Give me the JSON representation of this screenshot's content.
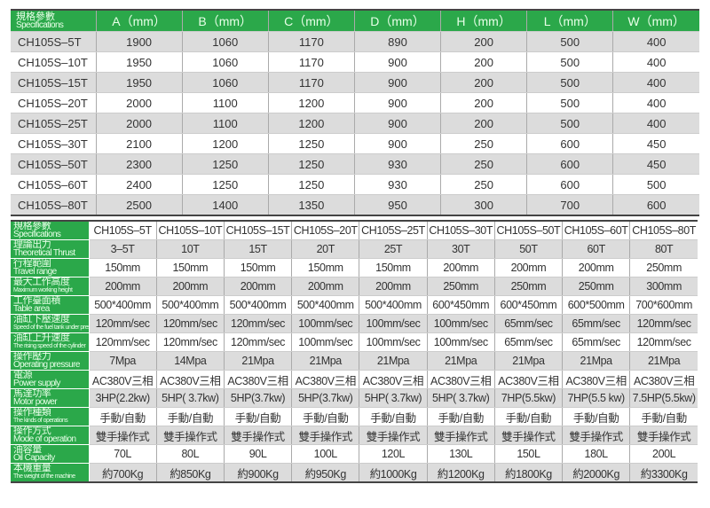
{
  "dimensions_table": {
    "header_zh": "規格參數",
    "header_en": "Specifications",
    "columns": [
      "A（mm）",
      "B（mm）",
      "C（mm）",
      "D（mm）",
      "H（mm）",
      "L（mm）",
      "W（mm）"
    ],
    "rows": [
      [
        "CH105S–5T",
        "1900",
        "1060",
        "1170",
        "890",
        "200",
        "500",
        "400"
      ],
      [
        "CH105S–10T",
        "1950",
        "1060",
        "1170",
        "900",
        "200",
        "500",
        "400"
      ],
      [
        "CH105S–15T",
        "1950",
        "1060",
        "1170",
        "900",
        "200",
        "500",
        "400"
      ],
      [
        "CH105S–20T",
        "2000",
        "1100",
        "1200",
        "900",
        "200",
        "500",
        "400"
      ],
      [
        "CH105S–25T",
        "2000",
        "1100",
        "1200",
        "900",
        "200",
        "500",
        "400"
      ],
      [
        "CH105S–30T",
        "2100",
        "1200",
        "1250",
        "900",
        "250",
        "600",
        "450"
      ],
      [
        "CH105S–50T",
        "2300",
        "1250",
        "1250",
        "930",
        "250",
        "600",
        "450"
      ],
      [
        "CH105S–60T",
        "2400",
        "1250",
        "1250",
        "930",
        "250",
        "600",
        "500"
      ],
      [
        "CH105S–80T",
        "2500",
        "1400",
        "1350",
        "950",
        "300",
        "700",
        "600"
      ]
    ]
  },
  "spec_table": {
    "rows": [
      {
        "zh": "規格參數",
        "en": "Specifications",
        "values": [
          "CH105S–5T",
          "CH105S–10T",
          "CH105S–15T",
          "CH105S–20T",
          "CH105S–25T",
          "CH105S–30T",
          "CH105S–50T",
          "CH105S–60T",
          "CH105S–80T"
        ]
      },
      {
        "zh": "理論出力",
        "en": "Theoretical Thrust",
        "values": [
          "3–5T",
          "10T",
          "15T",
          "20T",
          "25T",
          "30T",
          "50T",
          "60T",
          "80T"
        ]
      },
      {
        "zh": "行程範圍",
        "en": "Travel range",
        "values": [
          "150mm",
          "150mm",
          "150mm",
          "150mm",
          "150mm",
          "200mm",
          "200mm",
          "200mm",
          "250mm"
        ]
      },
      {
        "zh": "最大工作高度",
        "en": "Maximum working height",
        "values": [
          "200mm",
          "200mm",
          "200mm",
          "200mm",
          "200mm",
          "250mm",
          "250mm",
          "250mm",
          "300mm"
        ]
      },
      {
        "zh": "工作臺面積",
        "en": "Table area",
        "values": [
          "500*400mm",
          "500*400mm",
          "500*400mm",
          "500*400mm",
          "500*400mm",
          "600*450mm",
          "600*450mm",
          "600*500mm",
          "700*600mm"
        ]
      },
      {
        "zh": "油缸下壓速度",
        "en": "Speed of the fuel tank under pressure",
        "values": [
          "120mm/sec",
          "120mm/sec",
          "120mm/sec",
          "100mm/sec",
          "100mm/sec",
          "100mm/sec",
          "65mm/sec",
          "65mm/sec",
          "120mm/sec"
        ]
      },
      {
        "zh": "油缸上升速度",
        "en": "The rising speed of the cylinder",
        "values": [
          "120mm/sec",
          "120mm/sec",
          "120mm/sec",
          "100mm/sec",
          "100mm/sec",
          "100mm/sec",
          "65mm/sec",
          "65mm/sec",
          "120mm/sec"
        ]
      },
      {
        "zh": "操作壓力",
        "en": "Operating pressure",
        "values": [
          "7Mpa",
          "14Mpa",
          "21Mpa",
          "21Mpa",
          "21Mpa",
          "21Mpa",
          "21Mpa",
          "21Mpa",
          "21Mpa"
        ]
      },
      {
        "zh": "電源",
        "en": "Power supply",
        "values": [
          "AC380V三相",
          "AC380V三相",
          "AC380V三相",
          "AC380V三相",
          "AC380V三相",
          "AC380V三相",
          "AC380V三相",
          "AC380V三相",
          "AC380V三相"
        ]
      },
      {
        "zh": "馬達功率",
        "en": "Motor power",
        "values": [
          "3HP(2.2kw)",
          "5HP( 3.7kw)",
          "5HP(3.7kw)",
          "5HP(3.7kw)",
          "5HP( 3.7kw)",
          "5HP( 3.7kw)",
          "7HP(5.5kw)",
          "7HP(5.5 kw)",
          "7.5HP(5.5kw)"
        ]
      },
      {
        "zh": "操作種類",
        "en": "The kinds of operations",
        "values": [
          "手動/自動",
          "手動/自動",
          "手動/自動",
          "手動/自動",
          "手動/自動",
          "手動/自動",
          "手動/自動",
          "手動/自動",
          "手動/自動"
        ]
      },
      {
        "zh": "操作方式",
        "en": "Mode of operation",
        "values": [
          "雙手操作式",
          "雙手操作式",
          "雙手操作式",
          "雙手操作式",
          "雙手操作式",
          "雙手操作式",
          "雙手操作式",
          "雙手操作式",
          "雙手操作式"
        ]
      },
      {
        "zh": "油容量",
        "en": "Oil Capacity",
        "values": [
          "70L",
          "80L",
          "90L",
          "100L",
          "120L",
          "130L",
          "150L",
          "180L",
          "200L"
        ]
      },
      {
        "zh": "本機重量",
        "en": "The weight of the machine",
        "values": [
          "約700Kg",
          "約850Kg",
          "約900Kg",
          "約950Kg",
          "約1000Kg",
          "約1200Kg",
          "約1800Kg",
          "約2000Kg",
          "約3300Kg"
        ]
      }
    ]
  },
  "colors": {
    "header_green": "#2ba84a",
    "row_gray": "#dcdcdc"
  }
}
